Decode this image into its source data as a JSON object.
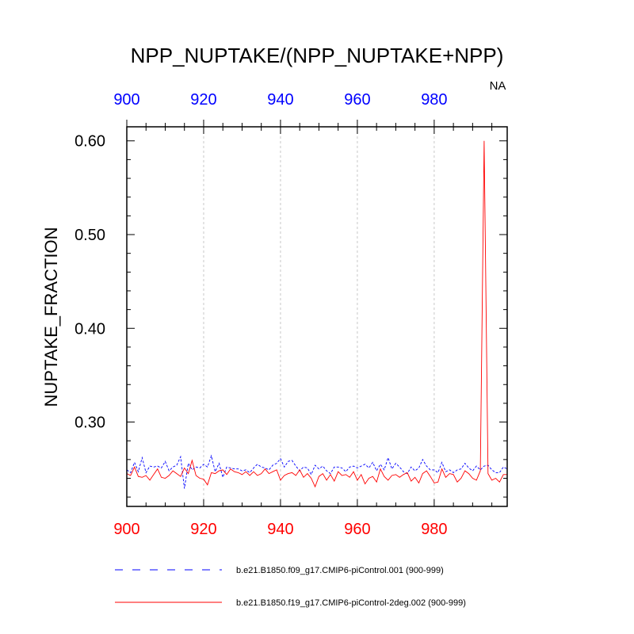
{
  "chart_data": {
    "type": "line",
    "title": "NPP_NUPTAKE/(NPP_NUPTAKE+NPP)",
    "ylabel": "NUPTAKE_FRACTION",
    "corner_label": "NA",
    "xlim": [
      900,
      999
    ],
    "ylim": [
      0.21,
      0.615
    ],
    "x_ticks_bottom": [
      "900",
      "920",
      "940",
      "960",
      "980"
    ],
    "x_ticks_top": [
      "900",
      "920",
      "940",
      "960",
      "980"
    ],
    "y_ticks": [
      "0.60",
      "0.50",
      "0.40",
      "0.30"
    ],
    "colors": {
      "bottom_axis": "#ff0000",
      "top_axis": "#0000ff",
      "frame": "#000000"
    },
    "grid": "vertical dashed at major x ticks",
    "legend_position": "bottom",
    "x": [
      900,
      901,
      902,
      903,
      904,
      905,
      906,
      907,
      908,
      909,
      910,
      911,
      912,
      913,
      914,
      915,
      916,
      917,
      918,
      919,
      920,
      921,
      922,
      923,
      924,
      925,
      926,
      927,
      928,
      929,
      930,
      931,
      932,
      933,
      934,
      935,
      936,
      937,
      938,
      939,
      940,
      941,
      942,
      943,
      944,
      945,
      946,
      947,
      948,
      949,
      950,
      951,
      952,
      953,
      954,
      955,
      956,
      957,
      958,
      959,
      960,
      961,
      962,
      963,
      964,
      965,
      966,
      967,
      968,
      969,
      970,
      971,
      972,
      973,
      974,
      975,
      976,
      977,
      978,
      979,
      980,
      981,
      982,
      983,
      984,
      985,
      986,
      987,
      988,
      989,
      990,
      991,
      992,
      993,
      994,
      995,
      996,
      997,
      998,
      999
    ],
    "series": [
      {
        "name": "b.e21.B1850.f09_g17.CMIP6-piControl.001 (900-999)",
        "color": "#0000ff",
        "style": "dashed",
        "values": [
          0.249,
          0.246,
          0.257,
          0.247,
          0.262,
          0.246,
          0.253,
          0.252,
          0.253,
          0.251,
          0.258,
          0.248,
          0.252,
          0.254,
          0.263,
          0.229,
          0.256,
          0.249,
          0.252,
          0.251,
          0.255,
          0.252,
          0.264,
          0.247,
          0.256,
          0.241,
          0.252,
          0.251,
          0.25,
          0.25,
          0.248,
          0.249,
          0.246,
          0.251,
          0.255,
          0.252,
          0.251,
          0.249,
          0.254,
          0.256,
          0.261,
          0.252,
          0.258,
          0.259,
          0.253,
          0.248,
          0.252,
          0.251,
          0.244,
          0.254,
          0.25,
          0.253,
          0.248,
          0.245,
          0.252,
          0.252,
          0.251,
          0.247,
          0.252,
          0.253,
          0.251,
          0.253,
          0.255,
          0.251,
          0.257,
          0.248,
          0.255,
          0.249,
          0.262,
          0.25,
          0.256,
          0.252,
          0.247,
          0.245,
          0.252,
          0.248,
          0.251,
          0.26,
          0.253,
          0.249,
          0.249,
          0.246,
          0.257,
          0.247,
          0.249,
          0.246,
          0.249,
          0.25,
          0.256,
          0.251,
          0.248,
          0.253,
          0.249,
          0.253,
          0.254,
          0.249,
          0.246,
          0.246,
          0.252,
          0.25
        ]
      },
      {
        "name": "b.e21.B1850.f19_g17.CMIP6-piControl-2deg.002 (900-999)",
        "color": "#ff0000",
        "style": "solid",
        "values": [
          0.245,
          0.243,
          0.252,
          0.242,
          0.241,
          0.243,
          0.238,
          0.244,
          0.25,
          0.241,
          0.24,
          0.243,
          0.248,
          0.245,
          0.242,
          0.251,
          0.245,
          0.259,
          0.243,
          0.24,
          0.239,
          0.233,
          0.246,
          0.245,
          0.248,
          0.249,
          0.244,
          0.25,
          0.247,
          0.246,
          0.244,
          0.247,
          0.243,
          0.247,
          0.243,
          0.245,
          0.25,
          0.245,
          0.247,
          0.249,
          0.238,
          0.243,
          0.245,
          0.246,
          0.243,
          0.249,
          0.241,
          0.245,
          0.24,
          0.231,
          0.242,
          0.245,
          0.238,
          0.244,
          0.237,
          0.247,
          0.243,
          0.244,
          0.241,
          0.247,
          0.238,
          0.244,
          0.234,
          0.24,
          0.242,
          0.236,
          0.25,
          0.242,
          0.238,
          0.243,
          0.244,
          0.241,
          0.244,
          0.246,
          0.237,
          0.241,
          0.235,
          0.245,
          0.248,
          0.242,
          0.235,
          0.236,
          0.25,
          0.241,
          0.245,
          0.244,
          0.236,
          0.24,
          0.248,
          0.245,
          0.24,
          0.238,
          0.248,
          0.6,
          0.245,
          0.238,
          0.24,
          0.236,
          0.244,
          0.244
        ]
      }
    ]
  }
}
